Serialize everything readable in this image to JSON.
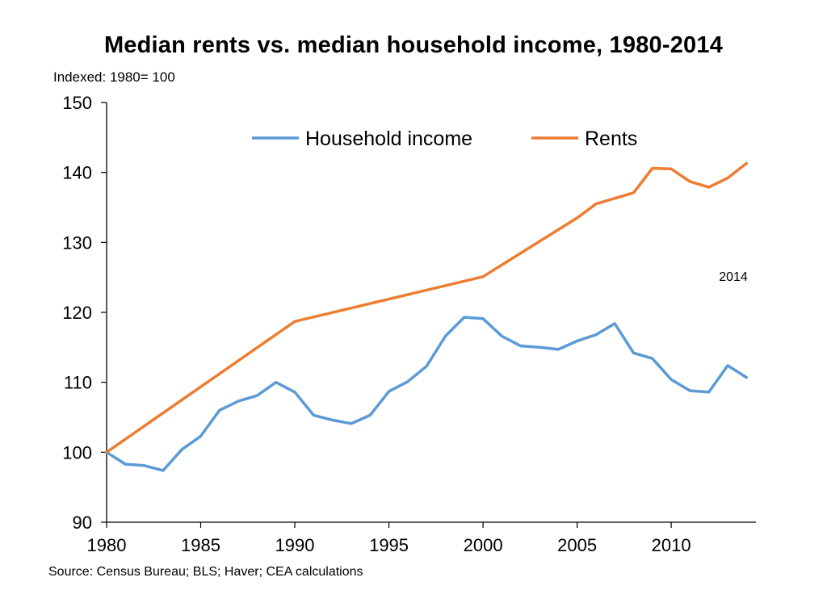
{
  "chart_data": {
    "type": "line",
    "title": "Median rents vs. median household income, 1980-2014",
    "subtitle": "Indexed: 1980= 100",
    "source": "Source: Census Bureau; BLS; Haver; CEA calculations",
    "xlabel": "",
    "ylabel": "",
    "xlim": [
      1980,
      2014.5
    ],
    "ylim": [
      90,
      150
    ],
    "x_ticks": [
      1980,
      1985,
      1990,
      1995,
      2000,
      2005,
      2010
    ],
    "y_ticks": [
      90,
      100,
      110,
      120,
      130,
      140,
      150
    ],
    "grid": false,
    "legend": "top",
    "annotation": {
      "text": "2014",
      "x": 2013.3,
      "y": 124.5
    },
    "series": [
      {
        "name": "Household income",
        "color": "#5b9bd5",
        "x": [
          1980,
          1981,
          1982,
          1983,
          1984,
          1985,
          1986,
          1987,
          1988,
          1989,
          1990,
          1991,
          1992,
          1993,
          1994,
          1995,
          1996,
          1997,
          1998,
          1999,
          2000,
          2001,
          2002,
          2003,
          2004,
          2005,
          2006,
          2007,
          2008,
          2009,
          2010,
          2011,
          2012,
          2013,
          2014
        ],
        "values": [
          100,
          98.3,
          98.1,
          97.4,
          100.4,
          102.3,
          106.0,
          107.3,
          108.1,
          110.0,
          108.6,
          105.3,
          104.6,
          104.1,
          105.3,
          108.7,
          110.1,
          112.3,
          116.6,
          119.3,
          119.1,
          116.6,
          115.2,
          115.0,
          114.7,
          115.9,
          116.8,
          118.4,
          114.2,
          113.4,
          110.4,
          108.8,
          108.6,
          112.4,
          110.7
        ]
      },
      {
        "name": "Rents",
        "color": "#ed7d31",
        "x": [
          1980,
          1990,
          2000,
          2005,
          2006,
          2008,
          2009,
          2010,
          2011,
          2012,
          2013,
          2014
        ],
        "values": [
          100,
          118.7,
          125.1,
          133.5,
          135.5,
          137.1,
          140.6,
          140.5,
          138.7,
          137.9,
          139.2,
          141.3
        ]
      }
    ]
  }
}
